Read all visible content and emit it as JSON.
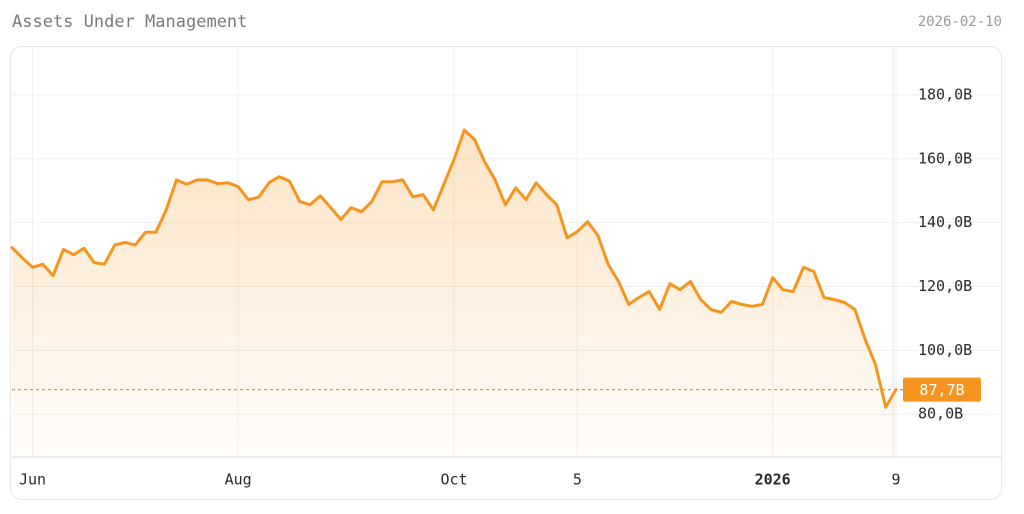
{
  "chart_data": {
    "type": "line",
    "title": "Assets Under Management",
    "date": "2026-02-10",
    "color": "#f5951f",
    "categories": [
      null,
      null,
      "Jun",
      null,
      null,
      null,
      null,
      null,
      null,
      null,
      null,
      null,
      null,
      null,
      null,
      null,
      null,
      null,
      null,
      null,
      null,
      null,
      "Aug",
      null,
      null,
      null,
      null,
      null,
      null,
      null,
      null,
      null,
      null,
      null,
      null,
      null,
      null,
      null,
      null,
      null,
      null,
      null,
      null,
      "Oct",
      null,
      null,
      null,
      null,
      null,
      null,
      null,
      null,
      null,
      null,
      null,
      "5",
      null,
      null,
      null,
      null,
      null,
      null,
      null,
      null,
      null,
      null,
      null,
      null,
      null,
      null,
      null,
      null,
      null,
      null,
      "2026",
      null,
      null,
      null,
      null,
      null,
      null,
      null,
      null,
      null,
      null,
      null,
      "9"
    ],
    "values": [
      132.2,
      129,
      126,
      127,
      123.4,
      131.6,
      130,
      132,
      127.5,
      127,
      133,
      133.8,
      133,
      137,
      137,
      144,
      153.4,
      152,
      153.4,
      153.4,
      152.2,
      152.5,
      151.3,
      147.2,
      148,
      152.5,
      154.4,
      153,
      146.6,
      145.6,
      148.4,
      144.7,
      141,
      144.7,
      143.4,
      146.6,
      152.8,
      152.8,
      153.4,
      148.1,
      148.8,
      144,
      151.9,
      159.7,
      169,
      166,
      159,
      153.4,
      145.6,
      150.9,
      147.2,
      152.5,
      148.8,
      145.6,
      135.3,
      137.2,
      140.3,
      136,
      126.9,
      121.6,
      114.4,
      116.6,
      118.4,
      112.8,
      120.9,
      119,
      121.6,
      115.9,
      112.8,
      111.9,
      115.3,
      114.4,
      113.8,
      114.4,
      122.8,
      119,
      118.4,
      126,
      124.7,
      116.6,
      115.9,
      115,
      112.8,
      103.4,
      95.6,
      82.2,
      87.7
    ],
    "ylim": [
      66.6,
      194.7
    ],
    "yticks": [
      {
        "value": 80,
        "label": "80,0B"
      },
      {
        "value": 100,
        "label": "100,0B"
      },
      {
        "value": 120,
        "label": "120,0B"
      },
      {
        "value": 140,
        "label": "140,0B"
      },
      {
        "value": 160,
        "label": "160,0B"
      },
      {
        "value": 180,
        "label": "180,0B"
      }
    ],
    "reference_line": {
      "value": 87.7,
      "label": "87,7B"
    },
    "grid": true
  }
}
